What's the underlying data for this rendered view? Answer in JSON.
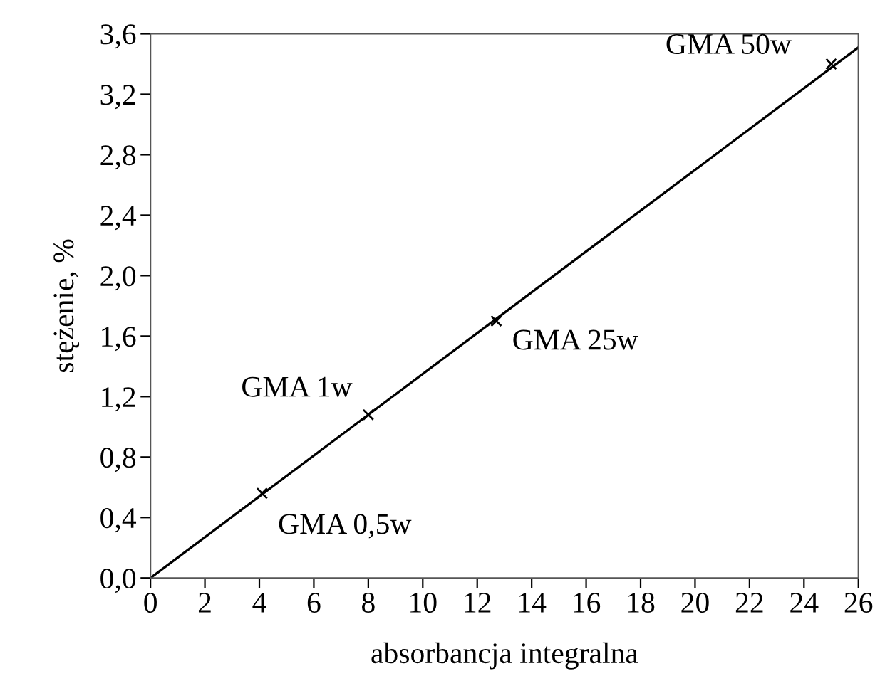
{
  "chart_data": {
    "type": "scatter",
    "xlabel": "absorbancja integralna",
    "ylabel": "stężenie, %",
    "series": [
      {
        "color": "#000000",
        "marker": "cross",
        "x": [
          4.1,
          8.0,
          12.7,
          25.0
        ],
        "values": [
          0.56,
          1.08,
          1.7,
          3.4
        ]
      },
      {
        "type": "line",
        "color": "#000000",
        "marker": "none",
        "line_style": "solid",
        "x": [
          0,
          26
        ],
        "values": [
          0,
          3.51
        ]
      }
    ],
    "annotations": [
      {
        "text": "GMA 0,5w",
        "x": 4.1,
        "y": 0.56
      },
      {
        "text": "GMA 1w",
        "x": 8.0,
        "y": 1.08
      },
      {
        "text": "GMA 25w",
        "x": 12.7,
        "y": 1.7
      },
      {
        "text": "GMA 50w",
        "x": 25.0,
        "y": 3.4
      }
    ],
    "xlim": [
      0,
      26
    ],
    "xticks": [
      0,
      2,
      4,
      6,
      8,
      10,
      12,
      14,
      16,
      18,
      20,
      22,
      24,
      26
    ],
    "ylim": [
      0,
      3.6
    ],
    "yticks": [
      {
        "value": 0,
        "label": "0,0"
      },
      {
        "value": 0.4,
        "label": "0,4"
      },
      {
        "value": 0.8,
        "label": "0,8"
      },
      {
        "value": 1.2,
        "label": "1,2"
      },
      {
        "value": 1.6,
        "label": "1,6"
      },
      {
        "value": 2.0,
        "label": "2,0"
      },
      {
        "value": 2.4,
        "label": "2,4"
      },
      {
        "value": 2.8,
        "label": "2,8"
      },
      {
        "value": 3.2,
        "label": "3,2"
      },
      {
        "value": 3.6,
        "label": "3,6"
      }
    ],
    "grid": false,
    "legend": false
  }
}
